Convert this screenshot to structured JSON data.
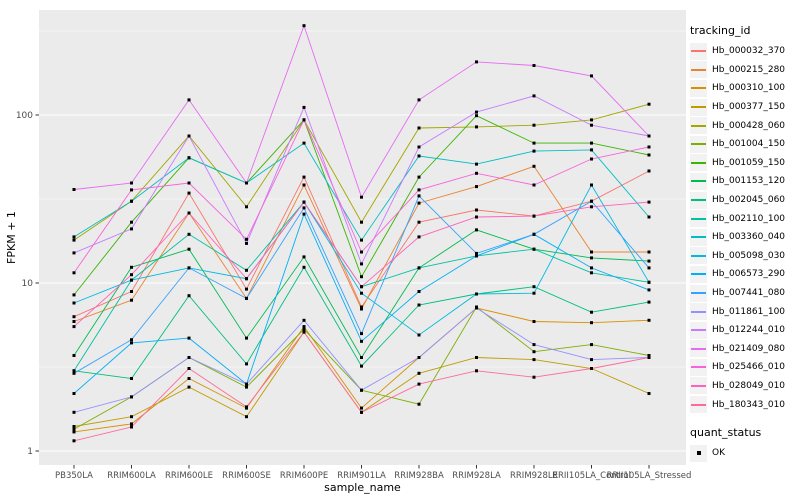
{
  "figure": {
    "background": "#FFFFFF",
    "panel_background": "#EBEBEB",
    "gridline_color": "#FFFFFF",
    "tick_text_color": "#4D4D4D",
    "axis_title_color": "#000000"
  },
  "chart_data": {
    "type": "line",
    "title": "",
    "xlabel": "sample_name",
    "ylabel": "FPKM + 1",
    "y_scale": "log10",
    "y_ticks": [
      1,
      10,
      100
    ],
    "ylim": [
      1,
      420
    ],
    "grid": "major and minor horizontal white gridlines on gray panel",
    "legend_position": "right",
    "point_marker": "small black square at every data point",
    "categories": [
      "PB350LA",
      "RRIM600LA",
      "RRIM600LE",
      "RRIM600SE",
      "RRIM600PE",
      "RRIM901LA",
      "RRIM928BA",
      "RRIM928LA",
      "RRIM928LE",
      "RRII105LA_Control",
      "RRII105LA_Stressed"
    ],
    "series": [
      {
        "name": "Hb_000032_370",
        "color": "#F8766D",
        "values": [
          6.3,
          8.9,
          34.3,
          9.2,
          42.7,
          7.2,
          23.0,
          27.2,
          25.0,
          30.7,
          46.4
        ]
      },
      {
        "name": "Hb_000215_280",
        "color": "#EA8331",
        "values": [
          5.9,
          7.9,
          26.1,
          8.1,
          38.3,
          7.0,
          29.9,
          37.5,
          49.5,
          15.3,
          15.3
        ]
      },
      {
        "name": "Hb_000310_100",
        "color": "#D89000",
        "values": [
          1.3,
          1.45,
          2.7,
          1.8,
          5.5,
          1.8,
          3.6,
          7.1,
          5.9,
          5.8,
          6.0
        ]
      },
      {
        "name": "Hb_000377_150",
        "color": "#C09B00",
        "values": [
          1.4,
          1.6,
          2.4,
          1.6,
          5.1,
          1.7,
          2.9,
          3.6,
          3.5,
          3.1,
          2.2
        ]
      },
      {
        "name": "Hb_000428_060",
        "color": "#A3A500",
        "values": [
          18.0,
          30.7,
          75.0,
          28.4,
          93.5,
          23.0,
          83.7,
          85.0,
          87.0,
          93.5,
          116.0
        ]
      },
      {
        "name": "Hb_001004_150",
        "color": "#7CAE00",
        "values": [
          1.35,
          2.1,
          3.6,
          2.4,
          5.3,
          2.3,
          1.9,
          7.2,
          3.9,
          4.3,
          3.7
        ]
      },
      {
        "name": "Hb_001059_150",
        "color": "#39B600",
        "values": [
          8.5,
          23.0,
          55.6,
          39.4,
          93.5,
          10.9,
          42.7,
          99.0,
          68.0,
          68.0,
          57.8
        ]
      },
      {
        "name": "Hb_001153_120",
        "color": "#00BB4E",
        "values": [
          3.7,
          12.4,
          15.9,
          4.7,
          14.3,
          3.6,
          12.3,
          20.7,
          15.9,
          14.1,
          13.5
        ]
      },
      {
        "name": "Hb_002045_060",
        "color": "#00BF7D",
        "values": [
          3.0,
          2.7,
          8.4,
          3.3,
          12.4,
          3.2,
          7.4,
          8.6,
          9.5,
          6.7,
          7.7
        ]
      },
      {
        "name": "Hb_002110_100",
        "color": "#00C1A3",
        "values": [
          3.0,
          10.4,
          19.5,
          11.9,
          30.3,
          9.5,
          12.3,
          14.5,
          15.9,
          11.5,
          10.1
        ]
      },
      {
        "name": "Hb_003360_040",
        "color": "#00BFC4",
        "values": [
          18.8,
          30.7,
          55.6,
          39.4,
          68.0,
          18.0,
          57.0,
          51.0,
          61.0,
          62.0,
          24.7
        ]
      },
      {
        "name": "Hb_005098_030",
        "color": "#00BAE0",
        "values": [
          7.6,
          10.4,
          12.3,
          10.6,
          30.3,
          8.7,
          4.9,
          8.6,
          8.7,
          38.3,
          10.1
        ]
      },
      {
        "name": "Hb_006573_290",
        "color": "#00B0F6",
        "values": [
          2.2,
          4.4,
          4.7,
          2.5,
          25.7,
          4.5,
          8.9,
          14.5,
          19.5,
          12.3,
          9.1
        ]
      },
      {
        "name": "Hb_007441_080",
        "color": "#35A2FF",
        "values": [
          2.9,
          4.6,
          12.3,
          8.1,
          28.0,
          5.0,
          33.0,
          15.0,
          19.5,
          30.7,
          12.3
        ]
      },
      {
        "name": "Hb_011861_100",
        "color": "#9590FF",
        "values": [
          1.7,
          2.1,
          3.6,
          2.5,
          6.0,
          2.3,
          3.6,
          7.1,
          4.3,
          3.5,
          3.6
        ]
      },
      {
        "name": "Hb_012244_010",
        "color": "#C77CFF",
        "values": [
          15.1,
          21.0,
          75.0,
          17.2,
          111.0,
          13.0,
          64.5,
          104.0,
          130.0,
          87.0,
          75.0
        ]
      },
      {
        "name": "Hb_021409_080",
        "color": "#E76BF3",
        "values": [
          36.0,
          39.4,
          123.0,
          39.4,
          340.0,
          32.4,
          123.0,
          207.0,
          197.0,
          171.0,
          75.0
        ]
      },
      {
        "name": "Hb_025466_010",
        "color": "#FA62DB",
        "values": [
          11.5,
          35.8,
          39.4,
          18.2,
          93.5,
          15.3,
          35.8,
          45.0,
          38.3,
          54.7,
          64.5
        ]
      },
      {
        "name": "Hb_028049_010",
        "color": "#FF62BC",
        "values": [
          5.5,
          11.2,
          26.1,
          10.6,
          30.3,
          9.5,
          18.8,
          24.7,
          25.0,
          28.4,
          30.3
        ]
      },
      {
        "name": "Hb_180343_010",
        "color": "#FF6A98",
        "values": [
          1.15,
          1.39,
          3.1,
          1.83,
          5.1,
          1.7,
          2.5,
          3.0,
          2.75,
          3.1,
          3.6
        ]
      }
    ]
  },
  "legends": {
    "tracking_id": {
      "title": "tracking_id"
    },
    "quant_status": {
      "title": "quant_status",
      "items": [
        "OK"
      ]
    }
  }
}
